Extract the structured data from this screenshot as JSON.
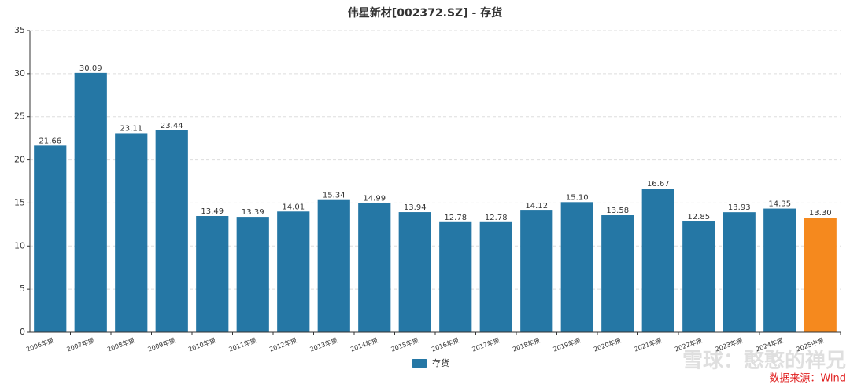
{
  "chart_data": {
    "type": "bar",
    "title": "伟星新材[002372.SZ] - 存货",
    "categories": [
      "2006年报",
      "2007年报",
      "2008年报",
      "2009年报",
      "2010年报",
      "2011年报",
      "2012年报",
      "2013年报",
      "2014年报",
      "2015年报",
      "2016年报",
      "2017年报",
      "2018年报",
      "2019年报",
      "2020年报",
      "2021年报",
      "2022年报",
      "2023年报",
      "2024年报",
      "2025中报"
    ],
    "values": [
      21.66,
      30.09,
      23.11,
      23.44,
      13.49,
      13.39,
      14.01,
      15.34,
      14.99,
      13.94,
      12.78,
      12.78,
      14.12,
      15.1,
      13.58,
      16.67,
      12.85,
      13.93,
      14.35,
      13.3
    ],
    "value_labels": [
      "21.66",
      "30.09",
      "23.11",
      "23.44",
      "13.49",
      "13.39",
      "14.01",
      "15.34",
      "14.99",
      "13.94",
      "12.78",
      "12.78",
      "14.12",
      "15.10",
      "13.58",
      "16.67",
      "12.85",
      "13.93",
      "14.35",
      "13.30"
    ],
    "colors": [
      "#2577a5",
      "#2577a5",
      "#2577a5",
      "#2577a5",
      "#2577a5",
      "#2577a5",
      "#2577a5",
      "#2577a5",
      "#2577a5",
      "#2577a5",
      "#2577a5",
      "#2577a5",
      "#2577a5",
      "#2577a5",
      "#2577a5",
      "#2577a5",
      "#2577a5",
      "#2577a5",
      "#2577a5",
      "#f5891e"
    ],
    "legend": {
      "name": "存货",
      "color": "#2577a5"
    },
    "ylim": [
      0,
      35
    ],
    "yticks": [
      0,
      5,
      10,
      15,
      20,
      25,
      30,
      35
    ],
    "grid": true,
    "source": "数据来源：Wind",
    "watermark": "雪球：憨憨的禅兄"
  }
}
